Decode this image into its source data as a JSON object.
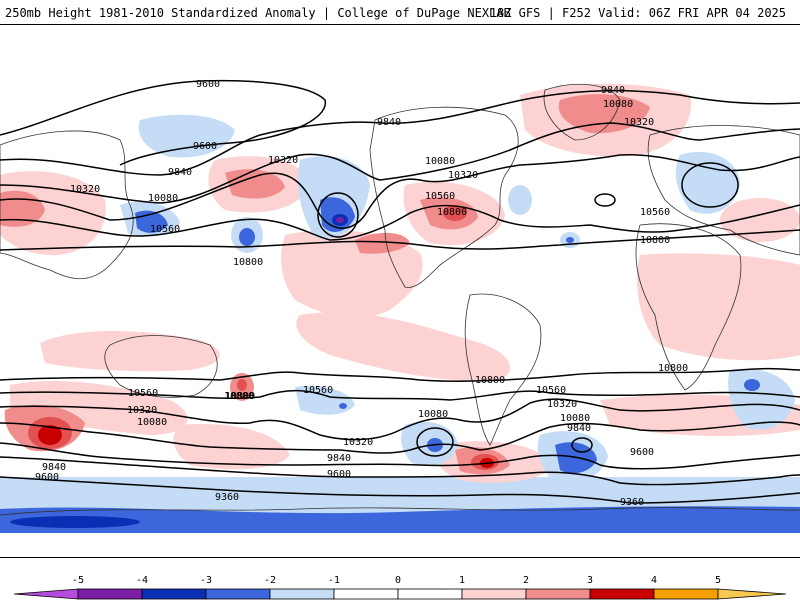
{
  "header": {
    "left": "250mb Height 1981-2010 Standardized Anomaly | College of DuPage NEXLAB",
    "right": "18Z GFS | F252 Valid: 06Z FRI APR 04 2025"
  },
  "colors": {
    "n5": "#b44cdc",
    "n4": "#7a1fa6",
    "n3": "#0a2fb4",
    "n2": "#3c66dc",
    "n1": "#c4dcf6",
    "p1": "#fcd2d2",
    "p2": "#f08c8c",
    "p3": "#e25050",
    "p4": "#c80000",
    "p5": "#f5a000",
    "p6": "#f7c850",
    "land_line": "#333333",
    "contour": "#000000"
  },
  "colorbar": {
    "labels": [
      "-5",
      "-4",
      "-3",
      "-2",
      "-1",
      "0",
      "1",
      "2",
      "3",
      "4",
      "5"
    ]
  },
  "contour_labels": [
    {
      "text": "9600"
    },
    {
      "text": "9600"
    },
    {
      "text": "9840"
    },
    {
      "text": "10320"
    },
    {
      "text": "10080"
    },
    {
      "text": "10560"
    },
    {
      "text": "10800"
    },
    {
      "text": "10320"
    },
    {
      "text": "9840"
    },
    {
      "text": "10080"
    },
    {
      "text": "10560"
    },
    {
      "text": "10320"
    },
    {
      "text": "10800"
    },
    {
      "text": "9840"
    },
    {
      "text": "10080"
    },
    {
      "text": "10320"
    },
    {
      "text": "10560"
    },
    {
      "text": "10800"
    },
    {
      "text": "10560"
    },
    {
      "text": "10800"
    },
    {
      "text": "10320"
    },
    {
      "text": "10080"
    },
    {
      "text": "9840"
    },
    {
      "text": "9600"
    },
    {
      "text": "10560"
    },
    {
      "text": "10320"
    },
    {
      "text": "9840"
    },
    {
      "text": "9600"
    },
    {
      "text": "9360"
    },
    {
      "text": "10800"
    },
    {
      "text": "10080"
    },
    {
      "text": "10800"
    },
    {
      "text": "10560"
    },
    {
      "text": "10320"
    },
    {
      "text": "10080"
    },
    {
      "text": "9840"
    },
    {
      "text": "9600"
    },
    {
      "text": "9360"
    },
    {
      "text": "10800"
    }
  ]
}
